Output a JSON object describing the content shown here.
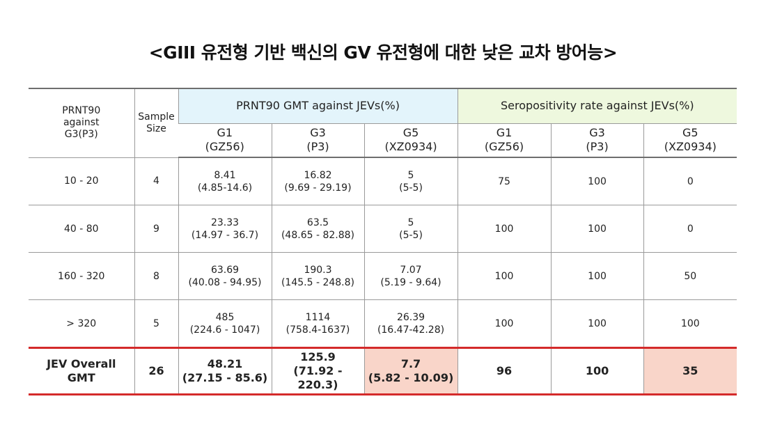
{
  "title": "<GIII 유전형 기반 백신의 GV 유전형에 대한 낮은 교차 방어능>",
  "headers": {
    "prnt90_line1": "PRNT90",
    "prnt90_line2": "against",
    "prnt90_line3": "G3(P3)",
    "sample_line1": "Sample",
    "sample_line2": "Size",
    "gmt_group": "PRNT90 GMT against JEVs(%)",
    "sero_group": "Seropositivity rate against JEVs(%)",
    "genotypes": [
      {
        "name": "G1",
        "strain": "(GZ56)"
      },
      {
        "name": "G3",
        "strain": "(P3)"
      },
      {
        "name": "G5",
        "strain": "(XZ0934)"
      },
      {
        "name": "G1",
        "strain": "(GZ56)"
      },
      {
        "name": "G3",
        "strain": "(P3)"
      },
      {
        "name": "G5",
        "strain": "(XZ0934)"
      }
    ]
  },
  "rows": [
    {
      "range": "10 - 20",
      "n": "4",
      "gmt": [
        {
          "v": "8.41",
          "ci": "(4.85-14.6)"
        },
        {
          "v": "16.82",
          "ci": "(9.69 - 29.19)"
        },
        {
          "v": "5",
          "ci": "(5-5)"
        }
      ],
      "sero": [
        "75",
        "100",
        "0"
      ]
    },
    {
      "range": "40 - 80",
      "n": "9",
      "gmt": [
        {
          "v": "23.33",
          "ci": "(14.97 - 36.7)"
        },
        {
          "v": "63.5",
          "ci": "(48.65 - 82.88)"
        },
        {
          "v": "5",
          "ci": "(5-5)"
        }
      ],
      "sero": [
        "100",
        "100",
        "0"
      ]
    },
    {
      "range": "160 - 320",
      "n": "8",
      "gmt": [
        {
          "v": "63.69",
          "ci": "(40.08 - 94.95)"
        },
        {
          "v": "190.3",
          "ci": "(145.5 - 248.8)"
        },
        {
          "v": "7.07",
          "ci": "(5.19 - 9.64)"
        }
      ],
      "sero": [
        "100",
        "100",
        "50"
      ]
    },
    {
      "range": "> 320",
      "n": "5",
      "gmt": [
        {
          "v": "485",
          "ci": "(224.6 - 1047)"
        },
        {
          "v": "1114",
          "ci": "(758.4-1637)"
        },
        {
          "v": "26.39",
          "ci": "(16.47-42.28)"
        }
      ],
      "sero": [
        "100",
        "100",
        "100"
      ]
    }
  ],
  "overall": {
    "label_line1": "JEV Overall",
    "label_line2": "GMT",
    "n": "26",
    "gmt": [
      {
        "v": "48.21",
        "ci": "(27.15 - 85.6)"
      },
      {
        "v": "125.9",
        "ci": "(71.92 - 220.3)"
      },
      {
        "v": "7.7",
        "ci": "(5.82 - 10.09)"
      }
    ],
    "sero": [
      "96",
      "100",
      "35"
    ]
  },
  "colors": {
    "gmt_header_bg": "#e3f4fb",
    "sero_header_bg": "#eef8de",
    "highlight": "#f9d5c9",
    "overall_border": "#d42a2a"
  }
}
